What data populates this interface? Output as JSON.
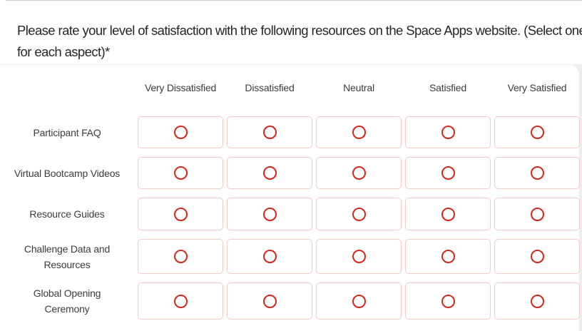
{
  "question": {
    "text": "Please rate your level of satisfaction with the following resources on the Space Apps website. (Select one for each aspect)*",
    "required_marker": "*"
  },
  "matrix": {
    "columns": [
      "Very Dissatisfied",
      "Dissatisfied",
      "Neutral",
      "Satisfied",
      "Very Satisfied"
    ],
    "rows": [
      {
        "label": "Participant FAQ"
      },
      {
        "label": "Virtual Bootcamp Videos"
      },
      {
        "label": "Resource Guides"
      },
      {
        "label": "Challenge Data and Resources"
      },
      {
        "label": "Global Opening Ceremony"
      }
    ]
  },
  "colors": {
    "radio_ring": "#d0281e",
    "cell_border": "#f3ccc7",
    "scrollbar_track": "#ededed",
    "heading_text": "#262626",
    "label_text": "#3c3c3c"
  }
}
